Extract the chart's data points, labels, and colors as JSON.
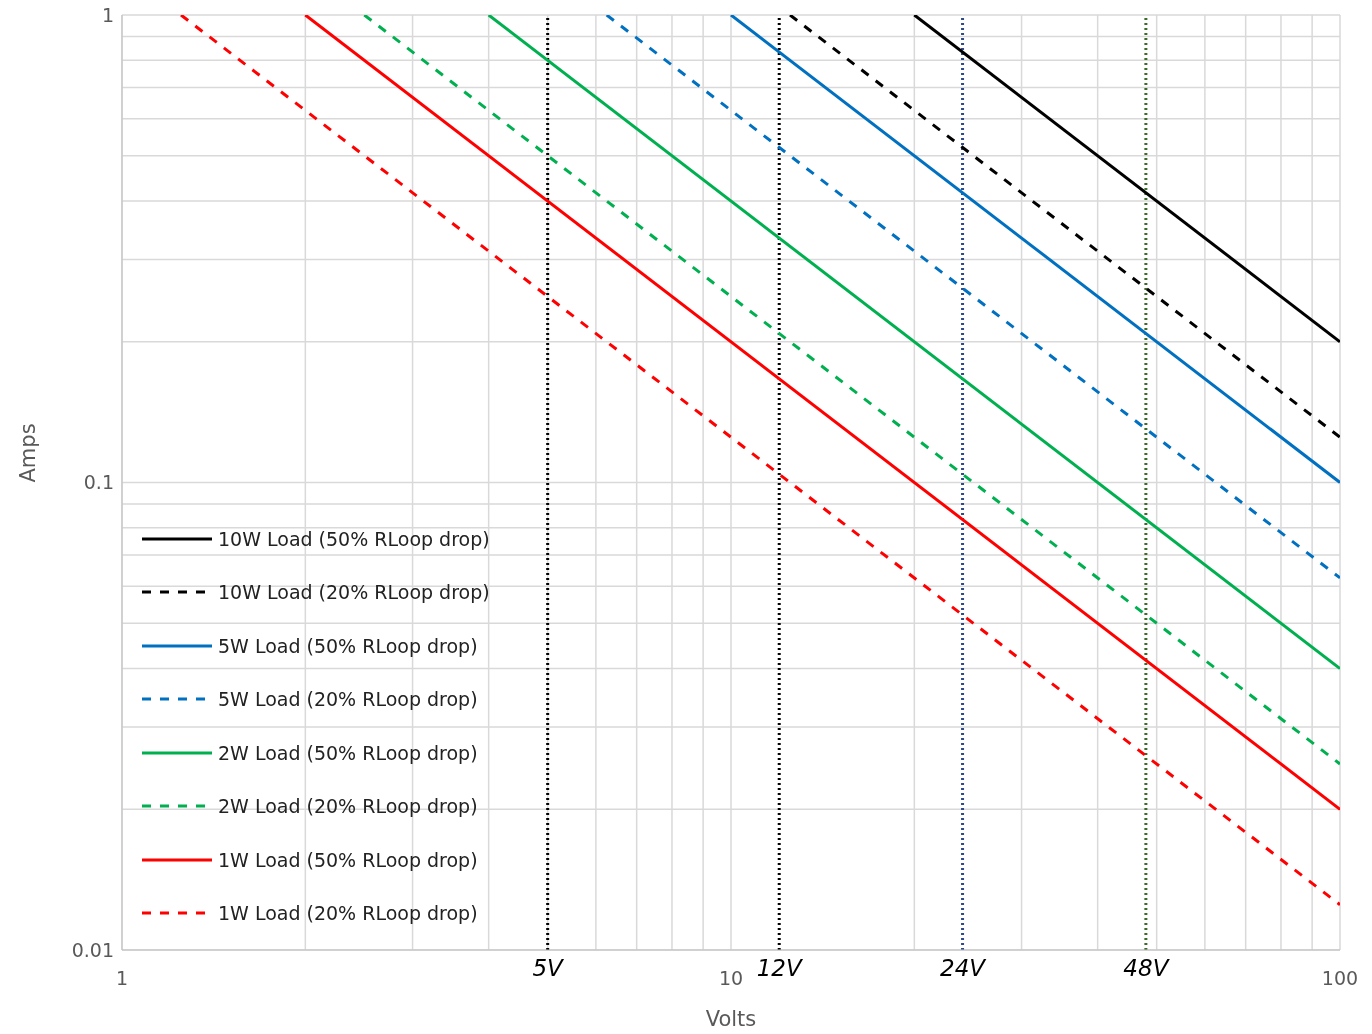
{
  "chart_data": {
    "type": "line",
    "xlabel": "Volts",
    "ylabel": "Amps",
    "log": "xy",
    "grid": true,
    "legend": "bottom left",
    "xlim": [
      1,
      100
    ],
    "ylim": [
      0.01,
      1
    ],
    "xticks": [
      1,
      {
        "value": 2,
        "label": null
      },
      {
        "value": 3,
        "label": null
      },
      {
        "value": 4,
        "label": null
      },
      {
        "value": 5,
        "label": null
      },
      {
        "value": 6,
        "label": null
      },
      {
        "value": 7,
        "label": null
      },
      {
        "value": 8,
        "label": null
      },
      {
        "value": 9,
        "label": null
      },
      10,
      {
        "value": 20,
        "label": null
      },
      {
        "value": 30,
        "label": null
      },
      {
        "value": 40,
        "label": null
      },
      {
        "value": 50,
        "label": null
      },
      {
        "value": 60,
        "label": null
      },
      {
        "value": 70,
        "label": null
      },
      {
        "value": 80,
        "label": null
      },
      {
        "value": 90,
        "label": null
      },
      100
    ],
    "yticks": [
      0.01,
      {
        "value": 0.02,
        "label": null
      },
      {
        "value": 0.03,
        "label": null
      },
      {
        "value": 0.04,
        "label": null
      },
      {
        "value": 0.05,
        "label": null
      },
      {
        "value": 0.06,
        "label": null
      },
      {
        "value": 0.07,
        "label": null
      },
      {
        "value": 0.08,
        "label": null
      },
      {
        "value": 0.09,
        "label": null
      },
      0.1,
      {
        "value": 0.2,
        "label": null
      },
      {
        "value": 0.3,
        "label": null
      },
      {
        "value": 0.4,
        "label": null
      },
      {
        "value": 0.5,
        "label": null
      },
      {
        "value": 0.6,
        "label": null
      },
      {
        "value": 0.7,
        "label": null
      },
      {
        "value": 0.8,
        "label": null
      },
      {
        "value": 0.9,
        "label": null
      },
      1
    ],
    "series": [
      {
        "name": "10W Load (50% RLoop drop)",
        "color": "#000000",
        "line_style": "solid",
        "x": [
          20,
          100
        ],
        "values": [
          1,
          0.2
        ]
      },
      {
        "name": "10W Load (20% RLoop drop)",
        "color": "#000000",
        "line_style": "dashed",
        "x": [
          12.5,
          100
        ],
        "values": [
          1,
          0.125
        ]
      },
      {
        "name": "5W Load (50% RLoop drop)",
        "color": "#0070c0",
        "line_style": "solid",
        "x": [
          10,
          100
        ],
        "values": [
          1,
          0.1
        ]
      },
      {
        "name": "5W Load (20% RLoop drop)",
        "color": "#0070c0",
        "line_style": "dashed",
        "x": [
          6.25,
          100
        ],
        "values": [
          1,
          0.0625
        ]
      },
      {
        "name": "2W Load (50% RLoop drop)",
        "color": "#00b050",
        "line_style": "solid",
        "x": [
          4,
          100
        ],
        "values": [
          1,
          0.04
        ]
      },
      {
        "name": "2W Load (20% RLoop drop)",
        "color": "#00b050",
        "line_style": "dashed",
        "x": [
          2.5,
          100
        ],
        "values": [
          1,
          0.025
        ]
      },
      {
        "name": "1W Load (50% RLoop drop)",
        "color": "#ff0000",
        "line_style": "solid",
        "x": [
          2,
          100
        ],
        "values": [
          1,
          0.02
        ]
      },
      {
        "name": "1W Load (20% RLoop drop)",
        "color": "#ff0000",
        "line_style": "dashed",
        "x": [
          1.25,
          100
        ],
        "values": [
          1,
          0.0125
        ]
      }
    ],
    "ref_lines": [
      {
        "axis": "x",
        "value": 5,
        "label": "5V",
        "color": "#000000",
        "line_style": "dotted"
      },
      {
        "axis": "x",
        "value": 12,
        "label": "12V",
        "color": "#000000",
        "line_style": "dotted"
      },
      {
        "axis": "x",
        "value": 24,
        "label": "24V",
        "color": "#2f4a8a",
        "line_style": "dotted"
      },
      {
        "axis": "x",
        "value": 48,
        "label": "48V",
        "color": "#3d6b2a",
        "line_style": "dotted"
      }
    ]
  }
}
